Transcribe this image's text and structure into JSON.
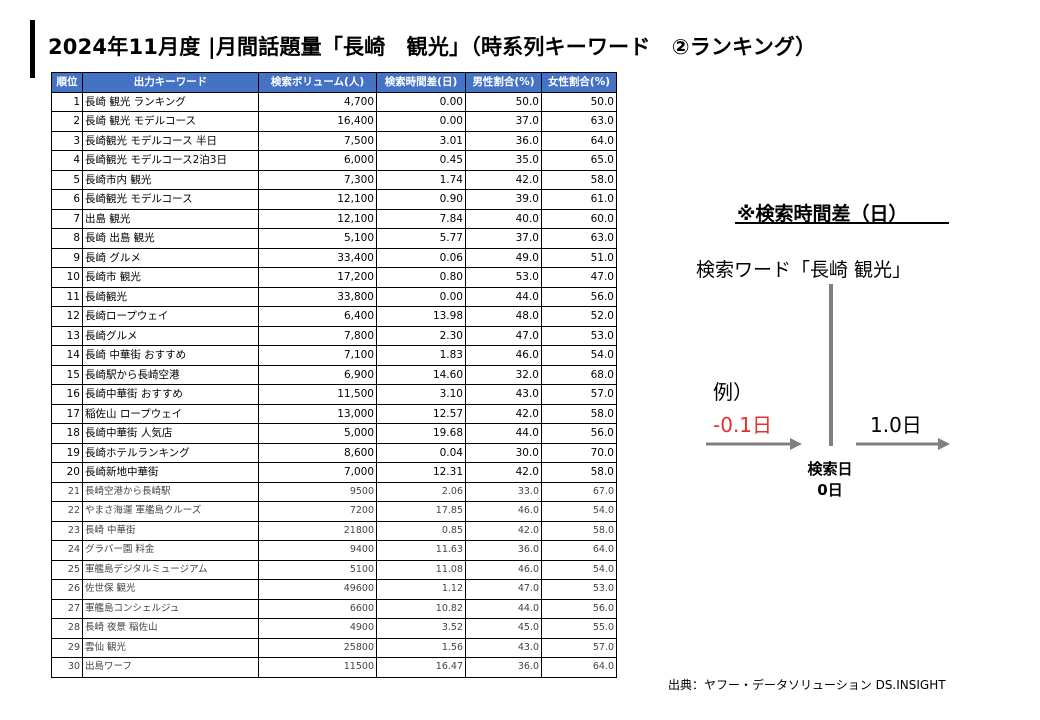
{
  "title": "2024年11月度 |月間話題量「長崎　観光」（時系列キーワード　②ランキング）",
  "table": {
    "headers": [
      "順位",
      "出力キーワード",
      "検索ボリューム(人)",
      "検索時間差(日)",
      "男性割合(%)",
      "女性割合(%)"
    ],
    "rows": [
      {
        "rank": "1",
        "keyword": "長崎 観光 ランキング",
        "volume": "4,700",
        "diff": "0.00",
        "male": "50.0",
        "female": "50.0"
      },
      {
        "rank": "2",
        "keyword": "長崎 観光 モデルコース",
        "volume": "16,400",
        "diff": "0.00",
        "male": "37.0",
        "female": "63.0"
      },
      {
        "rank": "3",
        "keyword": "長崎観光 モデルコース 半日",
        "volume": "7,500",
        "diff": "3.01",
        "male": "36.0",
        "female": "64.0"
      },
      {
        "rank": "4",
        "keyword": "長崎観光 モデルコース2泊3日",
        "volume": "6,000",
        "diff": "0.45",
        "male": "35.0",
        "female": "65.0"
      },
      {
        "rank": "5",
        "keyword": "長崎市内 観光",
        "volume": "7,300",
        "diff": "1.74",
        "male": "42.0",
        "female": "58.0"
      },
      {
        "rank": "6",
        "keyword": "長崎観光 モデルコース",
        "volume": "12,100",
        "diff": "0.90",
        "male": "39.0",
        "female": "61.0"
      },
      {
        "rank": "7",
        "keyword": "出島 観光",
        "volume": "12,100",
        "diff": "7.84",
        "male": "40.0",
        "female": "60.0"
      },
      {
        "rank": "8",
        "keyword": "長崎 出島 観光",
        "volume": "5,100",
        "diff": "5.77",
        "male": "37.0",
        "female": "63.0"
      },
      {
        "rank": "9",
        "keyword": "長崎 グルメ",
        "volume": "33,400",
        "diff": "0.06",
        "male": "49.0",
        "female": "51.0"
      },
      {
        "rank": "10",
        "keyword": "長崎市 観光",
        "volume": "17,200",
        "diff": "0.80",
        "male": "53.0",
        "female": "47.0"
      },
      {
        "rank": "11",
        "keyword": "長崎観光",
        "volume": "33,800",
        "diff": "0.00",
        "male": "44.0",
        "female": "56.0"
      },
      {
        "rank": "12",
        "keyword": "長崎ロープウェイ",
        "volume": "6,400",
        "diff": "13.98",
        "male": "48.0",
        "female": "52.0"
      },
      {
        "rank": "13",
        "keyword": "長崎グルメ",
        "volume": "7,800",
        "diff": "2.30",
        "male": "47.0",
        "female": "53.0"
      },
      {
        "rank": "14",
        "keyword": "長崎 中華街 おすすめ",
        "volume": "7,100",
        "diff": "1.83",
        "male": "46.0",
        "female": "54.0"
      },
      {
        "rank": "15",
        "keyword": "長崎駅から長崎空港",
        "volume": "6,900",
        "diff": "14.60",
        "male": "32.0",
        "female": "68.0"
      },
      {
        "rank": "16",
        "keyword": "長崎中華街 おすすめ",
        "volume": "11,500",
        "diff": "3.10",
        "male": "43.0",
        "female": "57.0"
      },
      {
        "rank": "17",
        "keyword": "稲佐山 ロープウェイ",
        "volume": "13,000",
        "diff": "12.57",
        "male": "42.0",
        "female": "58.0"
      },
      {
        "rank": "18",
        "keyword": "長崎中華街 人気店",
        "volume": "5,000",
        "diff": "19.68",
        "male": "44.0",
        "female": "56.0"
      },
      {
        "rank": "19",
        "keyword": "長崎ホテルランキング",
        "volume": "8,600",
        "diff": "0.04",
        "male": "30.0",
        "female": "70.0"
      },
      {
        "rank": "20",
        "keyword": "長崎新地中華街",
        "volume": "7,000",
        "diff": "12.31",
        "male": "42.0",
        "female": "58.0"
      },
      {
        "rank": "21",
        "keyword": "長崎空港から長崎駅",
        "volume": "9500",
        "diff": "2.06",
        "male": "33.0",
        "female": "67.0"
      },
      {
        "rank": "22",
        "keyword": "やまさ海運 軍艦島クルーズ",
        "volume": "7200",
        "diff": "17.85",
        "male": "46.0",
        "female": "54.0"
      },
      {
        "rank": "23",
        "keyword": "長崎 中華街",
        "volume": "21800",
        "diff": "0.85",
        "male": "42.0",
        "female": "58.0"
      },
      {
        "rank": "24",
        "keyword": "グラバー園 料金",
        "volume": "9400",
        "diff": "11.63",
        "male": "36.0",
        "female": "64.0"
      },
      {
        "rank": "25",
        "keyword": "軍艦島デジタルミュージアム",
        "volume": "5100",
        "diff": "11.08",
        "male": "46.0",
        "female": "54.0"
      },
      {
        "rank": "26",
        "keyword": "佐世保 観光",
        "volume": "49600",
        "diff": "1.12",
        "male": "47.0",
        "female": "53.0"
      },
      {
        "rank": "27",
        "keyword": "軍艦島コンシェルジュ",
        "volume": "6600",
        "diff": "10.82",
        "male": "44.0",
        "female": "56.0"
      },
      {
        "rank": "28",
        "keyword": "長崎 夜景 稲佐山",
        "volume": "4900",
        "diff": "3.52",
        "male": "45.0",
        "female": "55.0"
      },
      {
        "rank": "29",
        "keyword": "雲仙 観光",
        "volume": "25800",
        "diff": "1.56",
        "male": "43.0",
        "female": "57.0"
      },
      {
        "rank": "30",
        "keyword": "出島ワーフ",
        "volume": "11500",
        "diff": "16.47",
        "male": "36.0",
        "female": "64.0"
      }
    ]
  },
  "diagram": {
    "heading": "※検索時間差（日）",
    "keyword_label": "検索ワード「長崎 観光」",
    "example_label": "例）",
    "negative_value": "-0.1日",
    "positive_value": "1.0日",
    "search_day_label": "検索日",
    "search_day_value": "0日",
    "negative_color": "#e03030",
    "arrow_color": "#808080"
  },
  "source": "出典：ヤフー・データソリューション DS.INSIGHT"
}
